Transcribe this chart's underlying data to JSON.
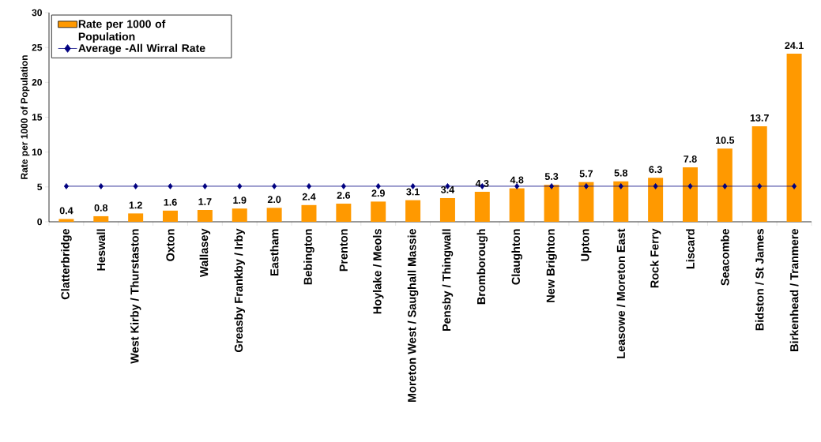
{
  "chart_data": {
    "type": "bar",
    "ylabel": "Rate per 1000 of Population",
    "categories": [
      "Clatterbridge",
      "Heswall",
      "West Kirby / Thurstaston",
      "Oxton",
      "Wallasey",
      "Greasby Frankby / Irby",
      "Eastham",
      "Bebington",
      "Prenton",
      "Hoylake / Meols",
      "Moreton West / Saughall Massie",
      "Pensby / Thingwall",
      "Bromborough",
      "Claughton",
      "New Brighton",
      "Upton",
      "Leasowe / Moreton East",
      "Rock Ferry",
      "Liscard",
      "Seacombe",
      "Bidston / St James",
      "Birkenhead / Tranmere"
    ],
    "series": [
      {
        "name": "Rate per 1000 of Population",
        "color": "#ff9900",
        "values": [
          0.4,
          0.8,
          1.2,
          1.6,
          1.7,
          1.9,
          2.0,
          2.4,
          2.6,
          2.9,
          3.1,
          3.4,
          4.3,
          4.8,
          5.3,
          5.7,
          5.8,
          6.3,
          7.8,
          10.5,
          13.7,
          24.1
        ],
        "value_labels": [
          "0.4",
          "0.8",
          "1.2",
          "1.6",
          "1.7",
          "1.9",
          "2.0",
          "2.4",
          "2.6",
          "2.9",
          "3.1",
          "3.4",
          "4.3",
          "4.8",
          "5.3",
          "5.7",
          "5.8",
          "6.3",
          "7.8",
          "10.5",
          "13.7",
          "24.1"
        ]
      },
      {
        "name": "Average -All Wirral Rate",
        "type": "line",
        "color": "#000080",
        "marker": "diamond",
        "values": [
          5.1,
          5.1,
          5.1,
          5.1,
          5.1,
          5.1,
          5.1,
          5.1,
          5.1,
          5.1,
          5.1,
          5.1,
          5.1,
          5.1,
          5.1,
          5.1,
          5.1,
          5.1,
          5.1,
          5.1,
          5.1,
          5.1
        ]
      }
    ],
    "ylim": [
      0,
      30
    ],
    "yticks": [
      0,
      5,
      10,
      15,
      20,
      25,
      30
    ],
    "legend": "top left"
  }
}
